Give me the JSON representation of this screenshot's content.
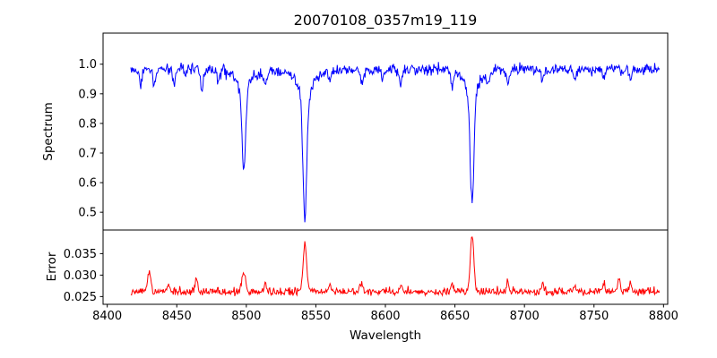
{
  "figure": {
    "background": "#ffffff"
  },
  "chart_data": [
    {
      "type": "line",
      "title": "20070108_0357m19_119",
      "xlabel": "Wavelength",
      "ylabel": "Spectrum",
      "legend": null,
      "grid": false,
      "line_color": "#0000ff",
      "xlim": [
        8397,
        8803
      ],
      "ylim": [
        0.44,
        1.105
      ],
      "xticks": [
        8400,
        8450,
        8500,
        8550,
        8600,
        8650,
        8700,
        8750,
        8800
      ],
      "xtick_labels": [
        "8400",
        "8450",
        "8500",
        "8550",
        "8600",
        "8650",
        "8700",
        "8750",
        "8800"
      ],
      "yticks": [
        0.5,
        0.6,
        0.7,
        0.8,
        0.9,
        1.0
      ],
      "ytick_labels": [
        "0.5",
        "0.6",
        "0.7",
        "0.8",
        "0.9",
        "1.0"
      ],
      "x_range": [
        8417,
        8797
      ],
      "n_points": 800,
      "continuum": 0.985,
      "noise_amplitude": 0.05,
      "noise_seed": 20070108,
      "absorption_lines": [
        {
          "center": 8424.0,
          "depth": 0.05,
          "core_width": 0.9,
          "wing_width": 1.8
        },
        {
          "center": 8434.0,
          "depth": 0.06,
          "core_width": 0.9,
          "wing_width": 1.8
        },
        {
          "center": 8448.0,
          "depth": 0.04,
          "core_width": 0.9,
          "wing_width": 1.8
        },
        {
          "center": 8468.0,
          "depth": 0.07,
          "core_width": 0.9,
          "wing_width": 1.8
        },
        {
          "center": 8480.0,
          "depth": 0.04,
          "core_width": 0.9,
          "wing_width": 1.8
        },
        {
          "center": 8498.2,
          "depth": 0.34,
          "core_width": 1.3,
          "wing_width": 4.5
        },
        {
          "center": 8514.0,
          "depth": 0.05,
          "core_width": 0.9,
          "wing_width": 1.8
        },
        {
          "center": 8542.1,
          "depth": 0.51,
          "core_width": 1.3,
          "wing_width": 4.5
        },
        {
          "center": 8560.0,
          "depth": 0.035,
          "core_width": 0.9,
          "wing_width": 1.8
        },
        {
          "center": 8583.0,
          "depth": 0.05,
          "core_width": 0.9,
          "wing_width": 1.8
        },
        {
          "center": 8598.0,
          "depth": 0.04,
          "core_width": 0.9,
          "wing_width": 1.8
        },
        {
          "center": 8611.0,
          "depth": 0.05,
          "core_width": 0.9,
          "wing_width": 1.8
        },
        {
          "center": 8648.0,
          "depth": 0.04,
          "core_width": 0.9,
          "wing_width": 1.8
        },
        {
          "center": 8662.3,
          "depth": 0.455,
          "core_width": 1.3,
          "wing_width": 4.5
        },
        {
          "center": 8674.0,
          "depth": 0.035,
          "core_width": 0.9,
          "wing_width": 1.8
        },
        {
          "center": 8688.0,
          "depth": 0.05,
          "core_width": 0.9,
          "wing_width": 1.8
        },
        {
          "center": 8713.0,
          "depth": 0.04,
          "core_width": 0.9,
          "wing_width": 1.8
        },
        {
          "center": 8736.0,
          "depth": 0.035,
          "core_width": 0.9,
          "wing_width": 1.8
        },
        {
          "center": 8757.0,
          "depth": 0.035,
          "core_width": 0.9,
          "wing_width": 1.8
        },
        {
          "center": 8776.0,
          "depth": 0.03,
          "core_width": 0.9,
          "wing_width": 1.8
        }
      ]
    },
    {
      "type": "line",
      "ylabel": "Error",
      "legend": null,
      "grid": false,
      "line_color": "#ff0000",
      "xlim": [
        8397,
        8803
      ],
      "ylim": [
        0.0232,
        0.0405
      ],
      "yticks": [
        0.025,
        0.03,
        0.035
      ],
      "ytick_labels": [
        "0.025",
        "0.030",
        "0.035"
      ],
      "baseline": 0.0256,
      "noise_abs": 0.0016,
      "noise_sym": 0.0006,
      "peaks": [
        {
          "center": 8430.0,
          "height": 0.0045,
          "width": 1.2
        },
        {
          "center": 8444.0,
          "height": 0.002,
          "width": 0.9
        },
        {
          "center": 8464.0,
          "height": 0.0028,
          "width": 1.0
        },
        {
          "center": 8498.2,
          "height": 0.0048,
          "width": 1.3
        },
        {
          "center": 8514.0,
          "height": 0.002,
          "width": 0.9
        },
        {
          "center": 8542.1,
          "height": 0.0112,
          "width": 1.3
        },
        {
          "center": 8560.0,
          "height": 0.0015,
          "width": 0.9
        },
        {
          "center": 8583.0,
          "height": 0.0018,
          "width": 0.9
        },
        {
          "center": 8611.0,
          "height": 0.0018,
          "width": 0.9
        },
        {
          "center": 8648.0,
          "height": 0.0015,
          "width": 0.9
        },
        {
          "center": 8662.3,
          "height": 0.0135,
          "width": 1.2
        },
        {
          "center": 8688.0,
          "height": 0.0018,
          "width": 0.9
        },
        {
          "center": 8713.0,
          "height": 0.002,
          "width": 1.0
        },
        {
          "center": 8736.0,
          "height": 0.0015,
          "width": 0.9
        },
        {
          "center": 8757.0,
          "height": 0.002,
          "width": 0.9
        },
        {
          "center": 8768.0,
          "height": 0.0028,
          "width": 0.9
        },
        {
          "center": 8776.0,
          "height": 0.002,
          "width": 0.9
        }
      ]
    }
  ]
}
